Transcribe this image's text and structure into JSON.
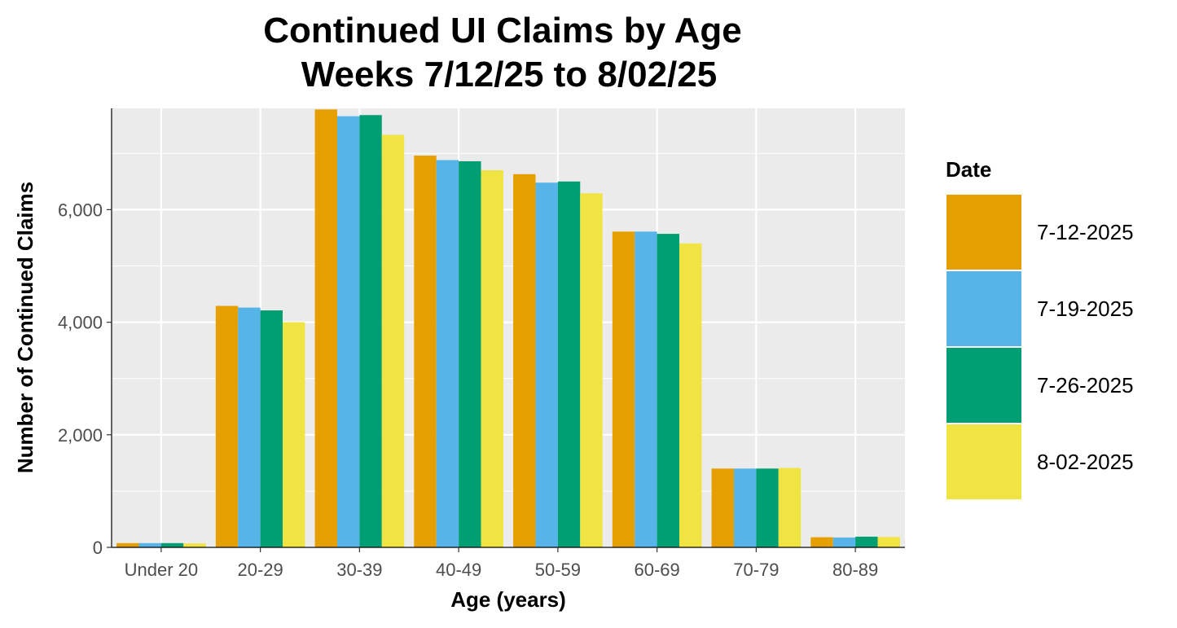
{
  "chart_data": {
    "type": "bar",
    "title": "Continued UI Claims by Age",
    "subtitle": "Weeks 7/12/25 to 8/02/25",
    "xlabel": "Age (years)",
    "ylabel": "Number of Continued Claims",
    "ylim": [
      0,
      7800
    ],
    "yticks": [
      0,
      2000,
      4000,
      6000
    ],
    "ytick_labels": [
      "0",
      "2,000",
      "4,000",
      "6,000"
    ],
    "grid": true,
    "legend": {
      "title": "Date",
      "position": "right"
    },
    "categories": [
      "Under 20",
      "20-29",
      "30-39",
      "40-49",
      "50-59",
      "60-69",
      "70-79",
      "80-89"
    ],
    "series": [
      {
        "name": "7-12-2025",
        "color": "#E69F00",
        "values": [
          75,
          4290,
          7780,
          6960,
          6630,
          5610,
          1400,
          180
        ]
      },
      {
        "name": "7-19-2025",
        "color": "#56B4E9",
        "values": [
          75,
          4260,
          7660,
          6880,
          6480,
          5610,
          1400,
          175
        ]
      },
      {
        "name": "7-26-2025",
        "color": "#009E73",
        "values": [
          75,
          4210,
          7680,
          6860,
          6500,
          5570,
          1400,
          190
        ]
      },
      {
        "name": "8-02-2025",
        "color": "#F0E442",
        "values": [
          70,
          4000,
          7330,
          6700,
          6290,
          5400,
          1410,
          185
        ]
      }
    ]
  }
}
